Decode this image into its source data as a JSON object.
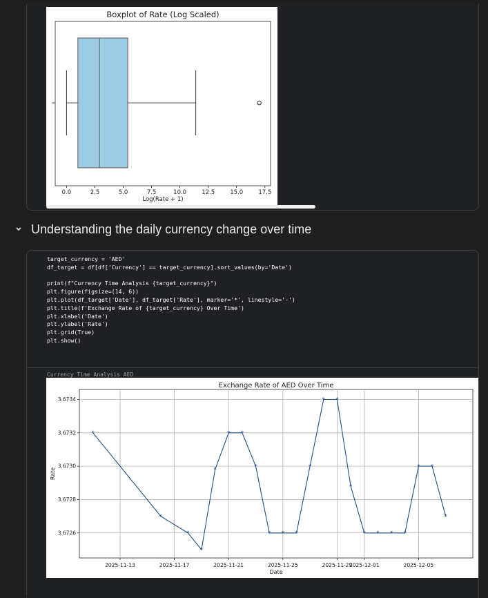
{
  "notebook": {
    "section_title": "Understanding the daily currency change over time",
    "code_lines": [
      "target_currency = 'AED'",
      "df_target = df[df['Currency'] == target_currency].sort_values(by='Date')",
      "",
      "print(f\"Currency Time Analysis {target_currency}\")",
      "plt.figure(figsize=(14, 6))",
      "plt.plot(df_target['Date'], df_target['Rate'], marker='*', linestyle='-')",
      "plt.title(f'Exchange Rate of {target_currency} Over Time')",
      "plt.xlabel('Date')",
      "plt.ylabel('Rate')",
      "plt.grid(True)",
      "plt.show()"
    ],
    "output_text": "Currency Time Analysis AED"
  },
  "chart_data": [
    {
      "type": "boxplot",
      "title": "Boxplot of Rate (Log Scaled)",
      "xlabel": "Log(Rate + 1)",
      "ylabel": "",
      "xlim": [
        -1.0,
        18.0
      ],
      "xticks": [
        0.0,
        2.5,
        5.0,
        7.5,
        10.0,
        12.5,
        15.0,
        17.5
      ],
      "xtick_labels": [
        "0.0",
        "2.5",
        "5.0",
        "7.5",
        "10.0",
        "12.5",
        "15.0",
        "17.5"
      ],
      "box": {
        "whisker_low": 0.0,
        "q1": 1.0,
        "median": 2.9,
        "q3": 5.4,
        "whisker_high": 11.4
      },
      "outliers": [
        17.0
      ],
      "box_color": "#9ecde3",
      "grid": false
    },
    {
      "type": "line",
      "title": "Exchange Rate of AED Over Time",
      "xlabel": "Date",
      "ylabel": "Rate",
      "grid": true,
      "marker": "*",
      "line_color": "#1f4e8c",
      "x": [
        "2025-11-11",
        "2025-11-16",
        "2025-11-18",
        "2025-11-19",
        "2025-11-20",
        "2025-11-21",
        "2025-11-22",
        "2025-11-23",
        "2025-11-24",
        "2025-11-25",
        "2025-11-26",
        "2025-11-27",
        "2025-11-28",
        "2025-11-29",
        "2025-11-30",
        "2025-12-01",
        "2025-12-02",
        "2025-12-03",
        "2025-12-04",
        "2025-12-05",
        "2025-12-06",
        "2025-12-07"
      ],
      "y": [
        3.6732,
        3.6727,
        3.6726,
        3.6725,
        3.67298,
        3.6732,
        3.6732,
        3.673,
        3.6726,
        3.6726,
        3.6726,
        3.673,
        3.6734,
        3.6734,
        3.67288,
        3.6726,
        3.6726,
        3.6726,
        3.6726,
        3.673,
        3.673,
        3.6727
      ],
      "xticks": [
        "2025-11-13",
        "2025-11-17",
        "2025-11-21",
        "2025-11-25",
        "2025-11-29",
        "2025-12-01",
        "2025-12-05"
      ],
      "xtick_labels": [
        "2025-11-13",
        "2025-11-17",
        "2025-11-21",
        "2025-11-25",
        "2025-11-29",
        "2025-12-01",
        "2025-12-05"
      ],
      "yticks": [
        3.6726,
        3.6728,
        3.673,
        3.6732,
        3.6734
      ],
      "ytick_labels": [
        "3.6726",
        "3.6728",
        "3.6730",
        "3.6732",
        "3.6734"
      ],
      "xlim": [
        "2025-11-10",
        "2025-12-09"
      ],
      "ylim": [
        3.67245,
        3.67346
      ]
    }
  ]
}
